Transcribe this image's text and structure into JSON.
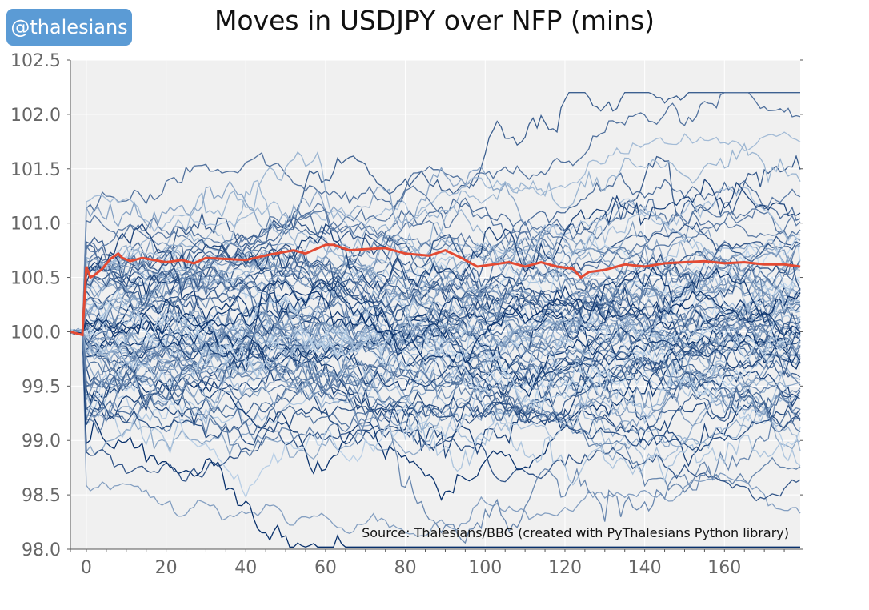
{
  "badge": {
    "label": "@thalesians"
  },
  "chart_data": {
    "type": "line",
    "title": "Moves in USDJPY over NFP (mins)",
    "xlabel": "",
    "ylabel": "",
    "xlim": [
      -4,
      179
    ],
    "ylim": [
      98.0,
      102.5
    ],
    "x_ticks": [
      0,
      20,
      40,
      60,
      80,
      100,
      120,
      140,
      160
    ],
    "x_tick_labels": [
      "0",
      "20",
      "40",
      "60",
      "80",
      "100",
      "120",
      "140",
      "160"
    ],
    "y_ticks": [
      98.0,
      98.5,
      99.0,
      99.5,
      100.0,
      100.5,
      101.0,
      101.5,
      102.0,
      102.5
    ],
    "y_tick_labels": [
      "98.0",
      "98.5",
      "99.0",
      "99.5",
      "100.0",
      "100.5",
      "101.0",
      "101.5",
      "102.0",
      "102.5"
    ],
    "grid": true,
    "background": "#f0f0f0",
    "annotation": "Source: Thalesians/BBG (created with PyThalesians Python library)",
    "highlight_color": "#e34a33",
    "series": [
      {
        "color": "#e34a33",
        "highlight": true,
        "x": [
          -4,
          -1,
          0,
          1,
          2,
          4,
          6,
          8,
          9,
          11,
          14,
          17,
          20,
          24,
          27,
          30,
          35,
          40,
          46,
          52,
          55,
          60,
          62,
          66,
          70,
          75,
          80,
          86,
          90,
          94,
          98,
          102,
          106,
          110,
          114,
          118,
          122,
          124,
          126,
          130,
          135,
          140,
          145,
          150,
          155,
          160,
          165,
          170,
          175,
          179
        ],
        "y": [
          100.0,
          99.97,
          100.6,
          100.5,
          100.52,
          100.58,
          100.67,
          100.72,
          100.68,
          100.65,
          100.68,
          100.66,
          100.64,
          100.66,
          100.63,
          100.68,
          100.67,
          100.66,
          100.71,
          100.75,
          100.72,
          100.8,
          100.8,
          100.75,
          100.76,
          100.77,
          100.72,
          100.7,
          100.75,
          100.68,
          100.6,
          100.62,
          100.64,
          100.6,
          100.64,
          100.6,
          100.58,
          100.5,
          100.55,
          100.57,
          100.62,
          100.6,
          100.63,
          100.64,
          100.65,
          100.63,
          100.64,
          100.62,
          100.62,
          100.6
        ]
      }
    ],
    "background_series": {
      "count": 90,
      "start": 100.0,
      "color_range": [
        "#c6dbef",
        "#08306b"
      ],
      "final_min": 98.2,
      "final_max": 102.1,
      "approx_finals": [
        102.1,
        101.95,
        101.85,
        101.55,
        101.3,
        101.15,
        101.05,
        100.95,
        100.85,
        100.75,
        100.6,
        100.45,
        100.35,
        100.25,
        100.15,
        100.05,
        99.95,
        99.85,
        99.7,
        99.55,
        99.4,
        99.25,
        99.1,
        98.95,
        98.75,
        98.6,
        98.5,
        98.25
      ]
    }
  }
}
